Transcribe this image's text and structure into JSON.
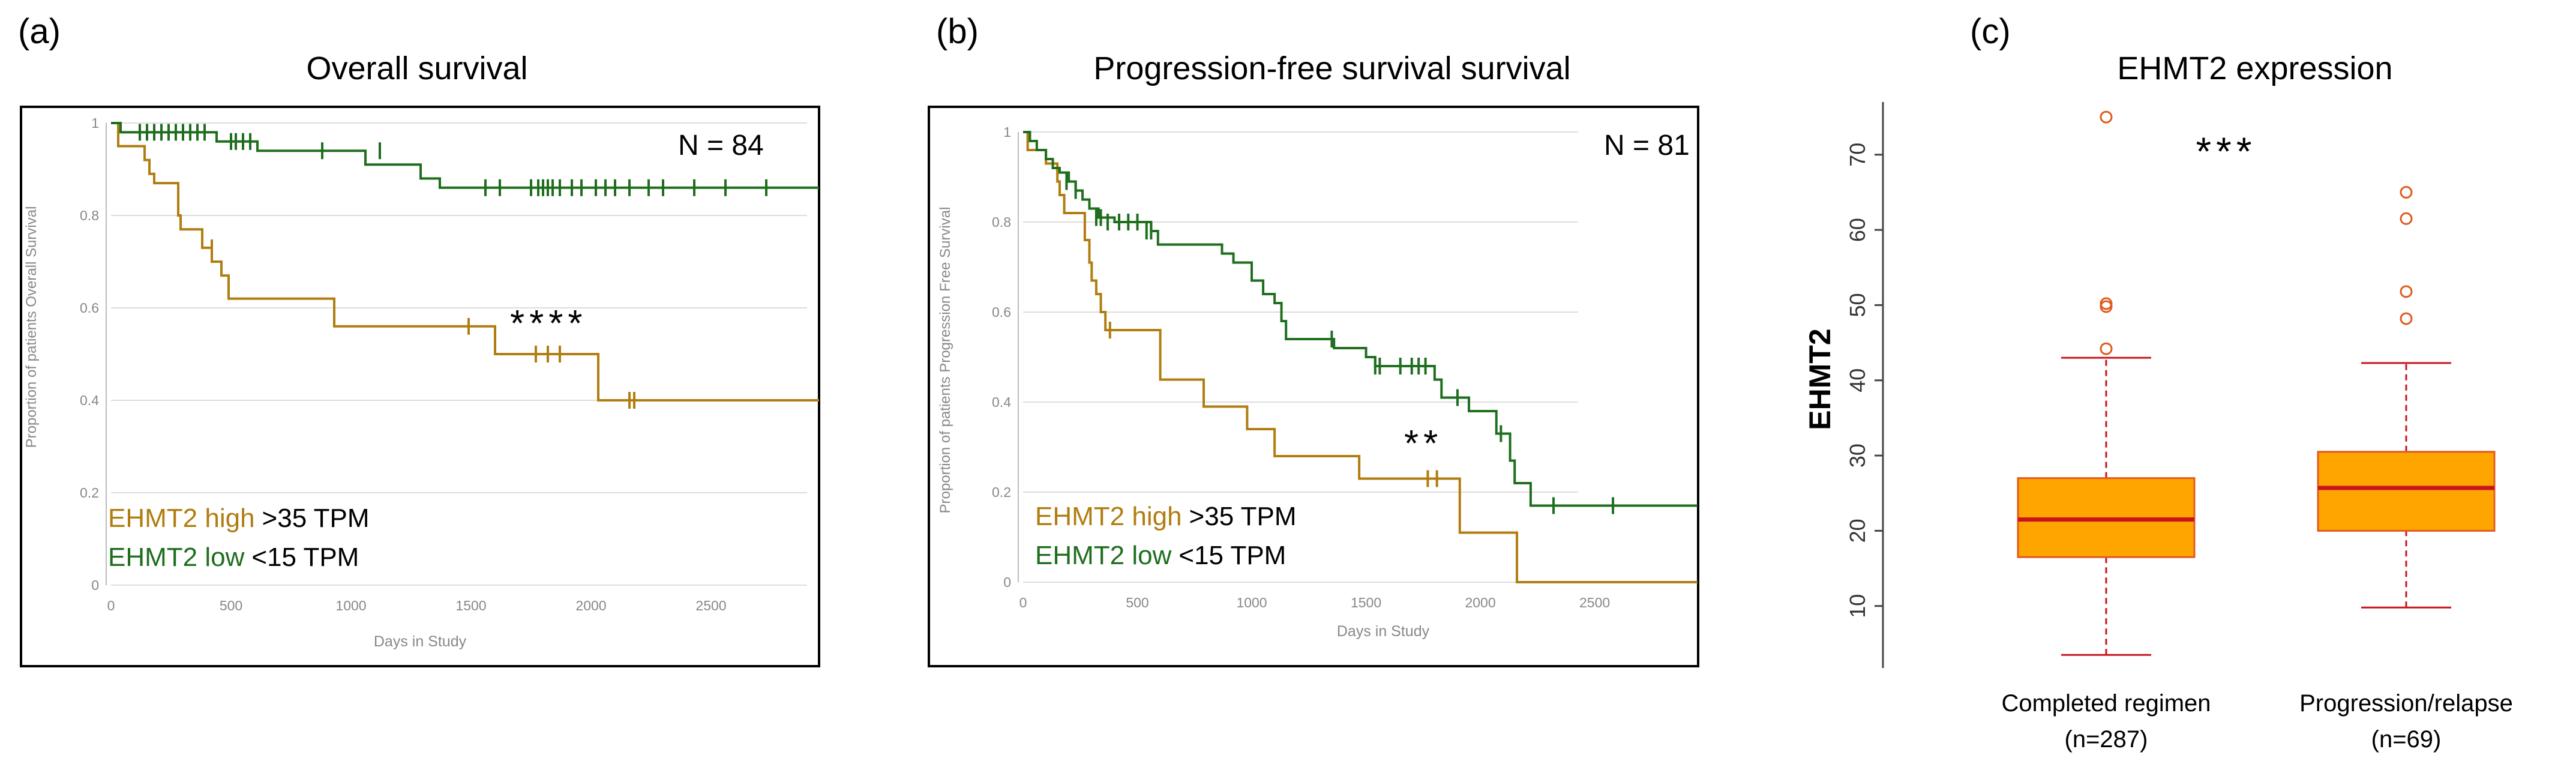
{
  "chart_data": [
    {
      "panel_label": "(a)",
      "type": "line",
      "title": "Overall survival",
      "xlabel": "Days in Study",
      "ylabel": "Proportion of patients Overall Survival",
      "xlim": [
        0,
        2900
      ],
      "ylim": [
        0,
        1
      ],
      "xticks": [
        0,
        500,
        1000,
        1500,
        2000,
        2500
      ],
      "yticks": [
        0,
        0.2,
        0.4,
        0.6,
        0.8,
        1
      ],
      "ytick_labels": [
        "0",
        "0.2",
        "0.4",
        "0.6",
        "0.8",
        "1"
      ],
      "grid": true,
      "n_label": "N = 84",
      "significance": "****",
      "legend": [
        {
          "name": "EHMT2 high",
          "rest": ">35 TPM",
          "color": "#B07D10"
        },
        {
          "name": "EHMT2 low",
          "rest": "<15 TPM",
          "color": "#1E6E1E"
        }
      ],
      "series": [
        {
          "name": "EHMT2 high",
          "color": "#B07D10",
          "steps": [
            [
              0,
              1
            ],
            [
              30,
              0.95
            ],
            [
              120,
              0.95
            ],
            [
              140,
              0.92
            ],
            [
              160,
              0.89
            ],
            [
              180,
              0.87
            ],
            [
              260,
              0.87
            ],
            [
              280,
              0.8
            ],
            [
              290,
              0.77
            ],
            [
              360,
              0.77
            ],
            [
              380,
              0.73
            ],
            [
              410,
              0.73
            ],
            [
              420,
              0.7
            ],
            [
              450,
              0.7
            ],
            [
              460,
              0.67
            ],
            [
              480,
              0.67
            ],
            [
              490,
              0.62
            ],
            [
              920,
              0.62
            ],
            [
              930,
              0.56
            ],
            [
              1590,
              0.56
            ],
            [
              1600,
              0.5
            ],
            [
              2020,
              0.5
            ],
            [
              2030,
              0.4
            ],
            [
              2950,
              0.4
            ]
          ],
          "censor": [
            [
              420,
              0.73
            ],
            [
              1490,
              0.56
            ],
            [
              1770,
              0.5
            ],
            [
              1820,
              0.5
            ],
            [
              1870,
              0.5
            ],
            [
              2160,
              0.4
            ],
            [
              2180,
              0.4
            ]
          ]
        },
        {
          "name": "EHMT2 low",
          "color": "#1E6E1E",
          "steps": [
            [
              0,
              1
            ],
            [
              30,
              1
            ],
            [
              40,
              0.98
            ],
            [
              430,
              0.98
            ],
            [
              440,
              0.96
            ],
            [
              600,
              0.96
            ],
            [
              610,
              0.94
            ],
            [
              1050,
              0.94
            ],
            [
              1060,
              0.91
            ],
            [
              1280,
              0.91
            ],
            [
              1290,
              0.88
            ],
            [
              1360,
              0.88
            ],
            [
              1370,
              0.86
            ],
            [
              2950,
              0.86
            ]
          ],
          "censor": [
            [
              120,
              0.98
            ],
            [
              150,
              0.98
            ],
            [
              180,
              0.98
            ],
            [
              210,
              0.98
            ],
            [
              240,
              0.98
            ],
            [
              270,
              0.98
            ],
            [
              300,
              0.98
            ],
            [
              330,
              0.98
            ],
            [
              360,
              0.98
            ],
            [
              390,
              0.98
            ],
            [
              500,
              0.96
            ],
            [
              520,
              0.96
            ],
            [
              550,
              0.96
            ],
            [
              580,
              0.96
            ],
            [
              880,
              0.94
            ],
            [
              1120,
              0.94
            ],
            [
              1560,
              0.86
            ],
            [
              1620,
              0.86
            ],
            [
              1750,
              0.86
            ],
            [
              1780,
              0.86
            ],
            [
              1800,
              0.86
            ],
            [
              1820,
              0.86
            ],
            [
              1840,
              0.86
            ],
            [
              1870,
              0.86
            ],
            [
              1920,
              0.86
            ],
            [
              1960,
              0.86
            ],
            [
              2020,
              0.86
            ],
            [
              2060,
              0.86
            ],
            [
              2100,
              0.86
            ],
            [
              2160,
              0.86
            ],
            [
              2240,
              0.86
            ],
            [
              2300,
              0.86
            ],
            [
              2430,
              0.86
            ],
            [
              2560,
              0.86
            ],
            [
              2730,
              0.86
            ]
          ]
        }
      ]
    },
    {
      "panel_label": "(b)",
      "type": "line",
      "title": "Progression-free survival survival",
      "xlabel": "Days in Study",
      "ylabel": "Proportion of patients Progression Free Survival",
      "xlim": [
        0,
        2900
      ],
      "ylim": [
        0,
        1
      ],
      "xticks": [
        0,
        500,
        1000,
        1500,
        2000,
        2500
      ],
      "yticks": [
        0,
        0.2,
        0.4,
        0.6,
        0.8,
        1
      ],
      "ytick_labels": [
        "0",
        "0.2",
        "0.4",
        "0.6",
        "0.8",
        "1"
      ],
      "grid": true,
      "n_label": "N = 81",
      "significance": "**",
      "legend": [
        {
          "name": "EHMT2 high",
          "rest": ">35 TPM",
          "color": "#B07D10"
        },
        {
          "name": "EHMT2 low",
          "rest": "<15 TPM",
          "color": "#1E6E1E"
        }
      ],
      "series": [
        {
          "name": "EHMT2 high",
          "color": "#B07D10",
          "steps": [
            [
              0,
              1
            ],
            [
              20,
              0.96
            ],
            [
              80,
              0.96
            ],
            [
              100,
              0.93
            ],
            [
              140,
              0.93
            ],
            [
              150,
              0.89
            ],
            [
              160,
              0.86
            ],
            [
              180,
              0.82
            ],
            [
              260,
              0.82
            ],
            [
              270,
              0.76
            ],
            [
              290,
              0.71
            ],
            [
              300,
              0.67
            ],
            [
              320,
              0.64
            ],
            [
              340,
              0.6
            ],
            [
              360,
              0.56
            ],
            [
              590,
              0.56
            ],
            [
              600,
              0.45
            ],
            [
              780,
              0.45
            ],
            [
              790,
              0.39
            ],
            [
              970,
              0.39
            ],
            [
              980,
              0.34
            ],
            [
              1090,
              0.34
            ],
            [
              1100,
              0.28
            ],
            [
              1460,
              0.28
            ],
            [
              1470,
              0.23
            ],
            [
              1900,
              0.23
            ],
            [
              1910,
              0.11
            ],
            [
              2150,
              0.11
            ],
            [
              2160,
              0
            ],
            [
              2950,
              0
            ]
          ],
          "censor": [
            [
              380,
              0.56
            ],
            [
              1770,
              0.23
            ],
            [
              1810,
              0.23
            ]
          ]
        },
        {
          "name": "EHMT2 low",
          "color": "#1E6E1E",
          "steps": [
            [
              0,
              1
            ],
            [
              30,
              0.98
            ],
            [
              60,
              0.96
            ],
            [
              100,
              0.94
            ],
            [
              130,
              0.92
            ],
            [
              160,
              0.91
            ],
            [
              200,
              0.89
            ],
            [
              230,
              0.87
            ],
            [
              260,
              0.85
            ],
            [
              290,
              0.83
            ],
            [
              330,
              0.81
            ],
            [
              400,
              0.8
            ],
            [
              560,
              0.78
            ],
            [
              590,
              0.75
            ],
            [
              860,
              0.75
            ],
            [
              870,
              0.73
            ],
            [
              920,
              0.71
            ],
            [
              1000,
              0.67
            ],
            [
              1050,
              0.64
            ],
            [
              1100,
              0.62
            ],
            [
              1130,
              0.58
            ],
            [
              1150,
              0.54
            ],
            [
              1350,
              0.54
            ],
            [
              1360,
              0.52
            ],
            [
              1490,
              0.52
            ],
            [
              1500,
              0.5
            ],
            [
              1540,
              0.48
            ],
            [
              1780,
              0.48
            ],
            [
              1800,
              0.45
            ],
            [
              1830,
              0.41
            ],
            [
              1930,
              0.41
            ],
            [
              1950,
              0.38
            ],
            [
              2050,
              0.38
            ],
            [
              2070,
              0.33
            ],
            [
              2110,
              0.33
            ],
            [
              2130,
              0.27
            ],
            [
              2150,
              0.22
            ],
            [
              2200,
              0.22
            ],
            [
              2220,
              0.17
            ],
            [
              2950,
              0.17
            ]
          ],
          "censor": [
            [
              190,
              0.89
            ],
            [
              230,
              0.87
            ],
            [
              320,
              0.81
            ],
            [
              340,
              0.81
            ],
            [
              370,
              0.8
            ],
            [
              420,
              0.8
            ],
            [
              460,
              0.8
            ],
            [
              500,
              0.8
            ],
            [
              540,
              0.78
            ],
            [
              560,
              0.78
            ],
            [
              1350,
              0.54
            ],
            [
              1540,
              0.48
            ],
            [
              1560,
              0.48
            ],
            [
              1650,
              0.48
            ],
            [
              1700,
              0.48
            ],
            [
              1730,
              0.48
            ],
            [
              1760,
              0.48
            ],
            [
              1900,
              0.41
            ],
            [
              2090,
              0.33
            ],
            [
              2320,
              0.17
            ],
            [
              2580,
              0.17
            ]
          ]
        }
      ]
    },
    {
      "panel_label": "(c)",
      "type": "box",
      "title": "EHMT2 expression",
      "ylabel": "EHMT2",
      "ylim": [
        2,
        77
      ],
      "yticks": [
        10,
        20,
        30,
        40,
        50,
        60,
        70
      ],
      "significance": "***",
      "box_color": "#FFA500",
      "edge_color": "#E05A1E",
      "median_color": "#C8141E",
      "categories": [
        {
          "label": "Completed regimen",
          "n": "(n=287)",
          "whisker_low": 3.5,
          "q1": 16.5,
          "median": 21.5,
          "q3": 27,
          "whisker_high": 43,
          "outliers": [
            44.2,
            49.8,
            50.2,
            75
          ]
        },
        {
          "label": "Progression/relapse",
          "n": "(n=69)",
          "whisker_low": 9.8,
          "q1": 20,
          "median": 25.7,
          "q3": 30.5,
          "whisker_high": 42.3,
          "outliers": [
            48.2,
            51.8,
            61.5,
            65
          ]
        }
      ]
    }
  ]
}
